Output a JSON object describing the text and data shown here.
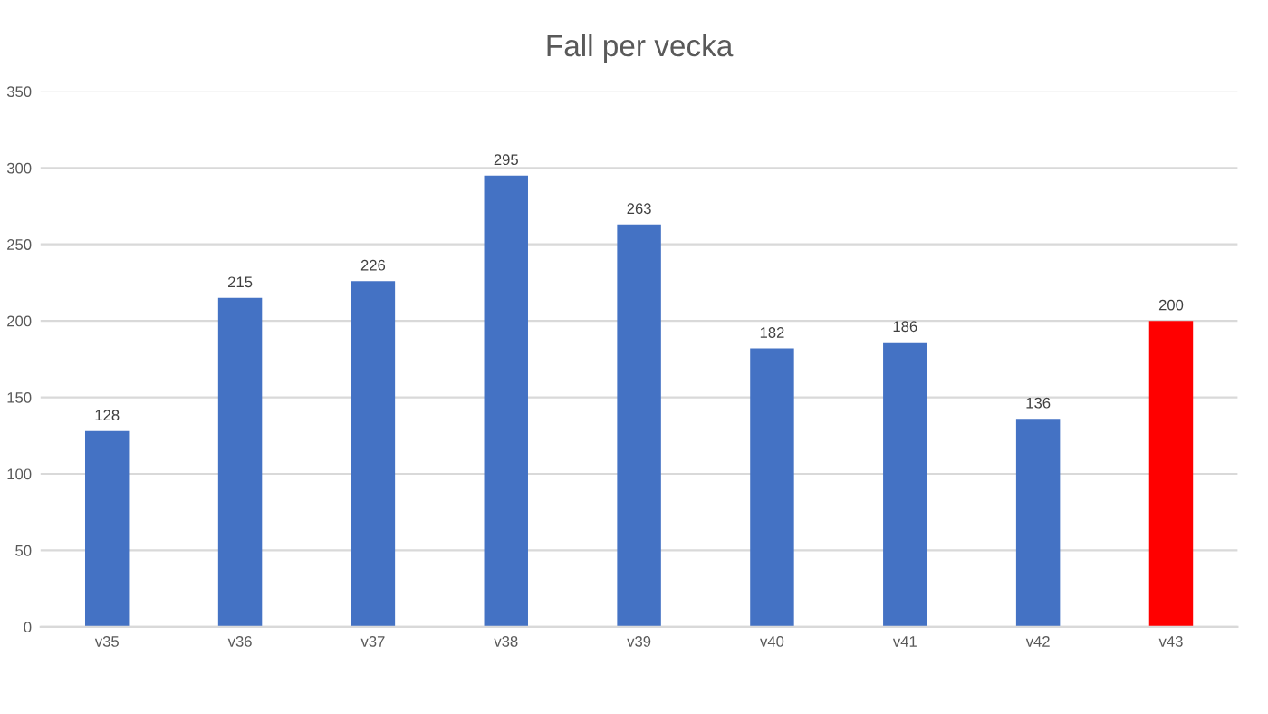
{
  "chart_data": {
    "type": "bar",
    "title": "Fall per vecka",
    "categories": [
      "v35",
      "v36",
      "v37",
      "v38",
      "v39",
      "v40",
      "v41",
      "v42",
      "v43"
    ],
    "values": [
      128,
      215,
      226,
      295,
      263,
      182,
      186,
      136,
      200
    ],
    "colors": [
      "#4472c4",
      "#4472c4",
      "#4472c4",
      "#4472c4",
      "#4472c4",
      "#4472c4",
      "#4472c4",
      "#4472c4",
      "#ff0000"
    ],
    "ylim": [
      0,
      350
    ],
    "yticks": [
      0,
      50,
      100,
      150,
      200,
      250,
      300,
      350
    ],
    "grid": "y",
    "data_labels": true
  }
}
